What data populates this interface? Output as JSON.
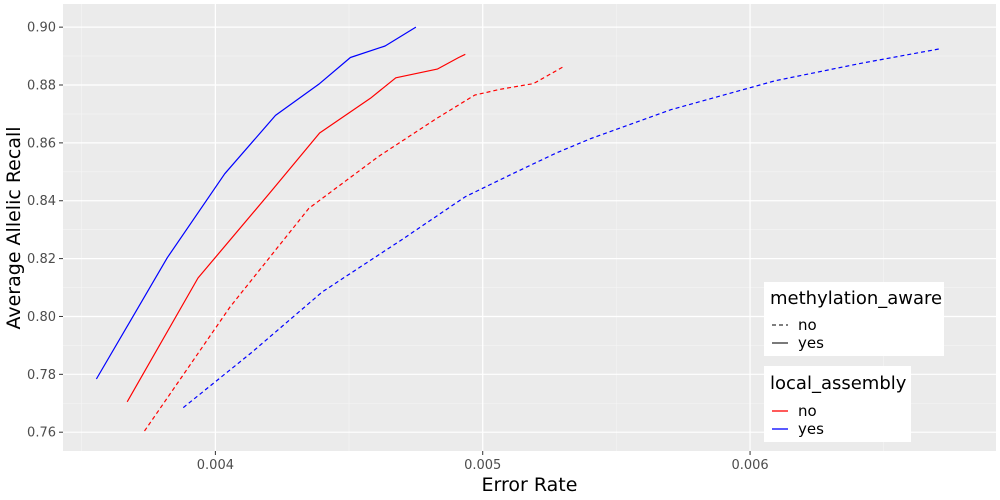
{
  "chart_data": {
    "type": "line",
    "xlabel": "Error Rate",
    "ylabel": "Average Allelic Recall",
    "xlim": [
      0.00343,
      0.00692
    ],
    "ylim": [
      0.7535,
      0.908
    ],
    "x_ticks": [
      {
        "value": 0.004,
        "label": "0.004"
      },
      {
        "value": 0.005,
        "label": "0.005"
      },
      {
        "value": 0.006,
        "label": "0.006"
      }
    ],
    "y_ticks": [
      {
        "value": 0.76,
        "label": "0.76"
      },
      {
        "value": 0.78,
        "label": "0.78"
      },
      {
        "value": 0.8,
        "label": "0.80"
      },
      {
        "value": 0.82,
        "label": "0.82"
      },
      {
        "value": 0.84,
        "label": "0.84"
      },
      {
        "value": 0.86,
        "label": "0.86"
      },
      {
        "value": 0.88,
        "label": "0.88"
      },
      {
        "value": 0.9,
        "label": "0.90"
      }
    ],
    "grid": true,
    "background": "#ebebeb",
    "series": [
      {
        "local_assembly": "yes",
        "methylation_aware": "yes",
        "color": "#0000ff",
        "dash": "solid",
        "points": [
          [
            0.003555,
            0.7784
          ],
          [
            0.00382,
            0.8203
          ],
          [
            0.004035,
            0.8493
          ],
          [
            0.004225,
            0.8695
          ],
          [
            0.00439,
            0.8805
          ],
          [
            0.004505,
            0.8895
          ],
          [
            0.004635,
            0.8935
          ],
          [
            0.00475,
            0.9
          ]
        ]
      },
      {
        "local_assembly": "no",
        "methylation_aware": "yes",
        "color": "#ff0000",
        "dash": "solid",
        "points": [
          [
            0.00367,
            0.7705
          ],
          [
            0.003935,
            0.8133
          ],
          [
            0.00421,
            0.8434
          ],
          [
            0.00439,
            0.8634
          ],
          [
            0.00458,
            0.8754
          ],
          [
            0.004675,
            0.8825
          ],
          [
            0.00483,
            0.8855
          ],
          [
            0.00491,
            0.8895
          ],
          [
            0.004935,
            0.8906
          ]
        ]
      },
      {
        "local_assembly": "no",
        "methylation_aware": "no",
        "color": "#ff0000",
        "dash": "dashed",
        "points": [
          [
            0.003735,
            0.7604
          ],
          [
            0.004055,
            0.8033
          ],
          [
            0.00435,
            0.8374
          ],
          [
            0.00461,
            0.8553
          ],
          [
            0.004825,
            0.8683
          ],
          [
            0.00497,
            0.8765
          ],
          [
            0.005065,
            0.8785
          ],
          [
            0.00519,
            0.8805
          ],
          [
            0.005305,
            0.8865
          ]
        ]
      },
      {
        "local_assembly": "yes",
        "methylation_aware": "no",
        "color": "#0000ff",
        "dash": "dashed",
        "points": [
          [
            0.00388,
            0.7685
          ],
          [
            0.004135,
            0.7875
          ],
          [
            0.0044,
            0.8085
          ],
          [
            0.004695,
            0.8264
          ],
          [
            0.004935,
            0.8414
          ],
          [
            0.005115,
            0.8495
          ],
          [
            0.005275,
            0.8565
          ],
          [
            0.005405,
            0.8615
          ],
          [
            0.005705,
            0.8715
          ],
          [
            0.006095,
            0.8815
          ],
          [
            0.006415,
            0.8875
          ],
          [
            0.00671,
            0.8925
          ]
        ]
      }
    ],
    "legends": [
      {
        "title": "methylation_aware",
        "items": [
          {
            "label": "no",
            "dash": "dashed",
            "color": "#333333"
          },
          {
            "label": "yes",
            "dash": "solid",
            "color": "#333333"
          }
        ]
      },
      {
        "title": "local_assembly",
        "items": [
          {
            "label": "no",
            "dash": "solid",
            "color": "#ff0000"
          },
          {
            "label": "yes",
            "dash": "solid",
            "color": "#0000ff"
          }
        ]
      }
    ],
    "legend_position": "bottom-right"
  }
}
